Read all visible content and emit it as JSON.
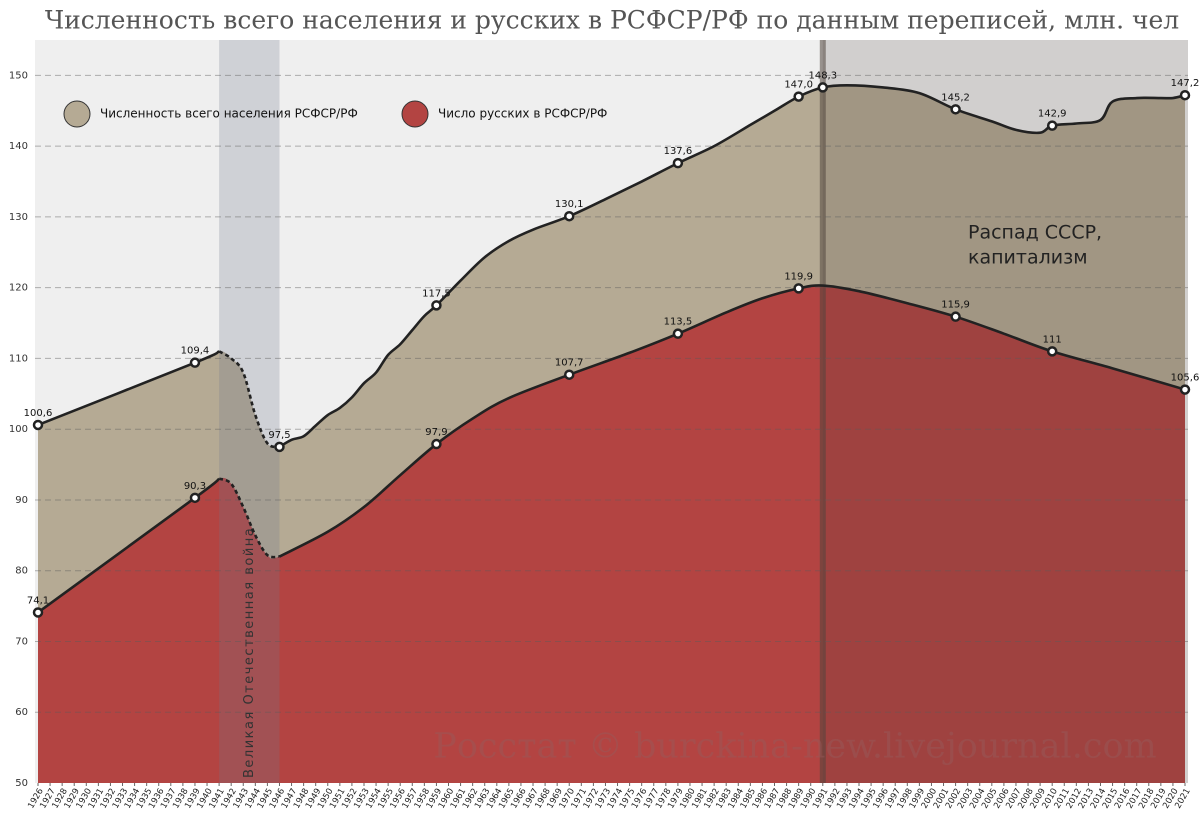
{
  "chart_data": {
    "type": "area",
    "title": "Численность всего населения и русских в РСФСР/РФ по данным переписей, млн. чел",
    "watermark": "Росстат © burckina-new.livejournal.com",
    "xlim": [
      1926,
      2021
    ],
    "ylim": [
      50,
      155
    ],
    "yticks": [
      50,
      60,
      70,
      80,
      90,
      100,
      110,
      120,
      130,
      140,
      150
    ],
    "xticks": [
      1926,
      1927,
      1928,
      1929,
      1930,
      1931,
      1932,
      1933,
      1934,
      1935,
      1936,
      1937,
      1938,
      1939,
      1940,
      1941,
      1942,
      1943,
      1944,
      1945,
      1946,
      1947,
      1948,
      1949,
      1950,
      1951,
      1952,
      1953,
      1954,
      1955,
      1956,
      1957,
      1958,
      1959,
      1960,
      1961,
      1962,
      1963,
      1964,
      1965,
      1966,
      1967,
      1968,
      1969,
      1970,
      1971,
      1972,
      1973,
      1974,
      1975,
      1976,
      1977,
      1978,
      1979,
      1980,
      1981,
      1982,
      1983,
      1984,
      1985,
      1986,
      1987,
      1988,
      1989,
      1990,
      1991,
      1992,
      1993,
      1994,
      1995,
      1996,
      1997,
      1998,
      1999,
      2000,
      2001,
      2002,
      2003,
      2004,
      2005,
      2006,
      2007,
      2008,
      2009,
      2010,
      2011,
      2012,
      2013,
      2014,
      2015,
      2016,
      2017,
      2018,
      2019,
      2020,
      2021
    ],
    "grid": true,
    "legend": "top-left",
    "dashed_range": [
      1941,
      1946
    ],
    "bands": [
      {
        "x": [
          1941,
          1946
        ],
        "label": [
          "Великая Отечественная война"
        ]
      },
      {
        "x": [
          1991,
          2021
        ],
        "label": [
          "Распад СССР,",
          "капитализм"
        ]
      }
    ],
    "series": [
      {
        "name": "Численность всего населения РСФСР/РФ",
        "color": "#b5aa94",
        "x": [
          1926,
          1939,
          1941,
          1942,
          1943,
          1944,
          1945,
          1946,
          1947,
          1948,
          1949,
          1950,
          1951,
          1952,
          1953,
          1954,
          1955,
          1956,
          1957,
          1958,
          1959,
          1961,
          1963,
          1965,
          1967,
          1970,
          1973,
          1976,
          1979,
          1982,
          1985,
          1987,
          1989,
          1991,
          1993,
          1996,
          1999,
          2002,
          2005,
          2007,
          2009,
          2010,
          2012,
          2014,
          2015,
          2017,
          2019,
          2020,
          2021
        ],
        "values": [
          100.6,
          109.4,
          111.0,
          110.0,
          108.0,
          102.0,
          98.0,
          97.5,
          98.5,
          99.0,
          100.5,
          102.0,
          103.0,
          104.5,
          106.5,
          108.0,
          110.5,
          112.0,
          114.0,
          116.0,
          117.5,
          121.0,
          124.3,
          126.6,
          128.2,
          130.1,
          132.5,
          135.0,
          137.6,
          140.0,
          143.0,
          145.0,
          147.0,
          148.3,
          148.6,
          148.3,
          147.5,
          145.2,
          143.5,
          142.3,
          141.9,
          142.9,
          143.2,
          143.7,
          146.3,
          146.8,
          146.8,
          146.8,
          147.2
        ],
        "value_labels": [
          "100,6",
          "109,4",
          null,
          null,
          null,
          null,
          null,
          "97,5",
          null,
          null,
          null,
          null,
          null,
          null,
          null,
          null,
          null,
          null,
          null,
          null,
          "117,5",
          null,
          null,
          null,
          null,
          "130,1",
          null,
          null,
          "137,6",
          null,
          null,
          null,
          "147,0",
          "148,3",
          null,
          null,
          null,
          "145,2",
          null,
          null,
          null,
          "142,9",
          null,
          null,
          null,
          null,
          null,
          null,
          "147,2"
        ]
      },
      {
        "name": "Число русских в РСФСР/РФ",
        "color": "#b34442",
        "x": [
          1926,
          1939,
          1941,
          1942,
          1943,
          1944,
          1945,
          1946,
          1950,
          1953,
          1956,
          1959,
          1962,
          1965,
          1970,
          1975,
          1979,
          1983,
          1986,
          1989,
          1991,
          1994,
          1998,
          2002,
          2006,
          2010,
          2015,
          2021
        ],
        "values": [
          74.1,
          90.3,
          93.0,
          92.3,
          89.0,
          85.0,
          82.2,
          82.0,
          85.5,
          89.0,
          93.5,
          97.9,
          101.5,
          104.4,
          107.7,
          110.8,
          113.5,
          116.5,
          118.5,
          119.9,
          120.3,
          119.5,
          117.8,
          115.9,
          113.5,
          111.0,
          108.6,
          105.6
        ],
        "value_labels": [
          "74,1",
          "90,3",
          null,
          null,
          null,
          null,
          null,
          null,
          null,
          null,
          null,
          "97,9",
          null,
          null,
          "107,7",
          null,
          "113,5",
          null,
          null,
          "119,9",
          null,
          null,
          null,
          "115,9",
          null,
          "111",
          null,
          "105,6"
        ]
      }
    ]
  }
}
